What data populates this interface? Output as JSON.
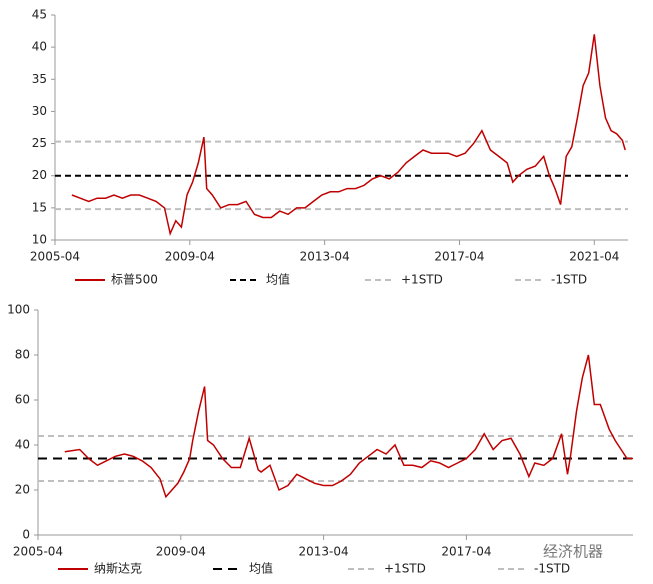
{
  "chart_data": [
    {
      "type": "line",
      "x": [
        "2005-10",
        "2006-01",
        "2006-04",
        "2006-07",
        "2006-10",
        "2007-01",
        "2007-04",
        "2007-07",
        "2007-10",
        "2008-01",
        "2008-04",
        "2008-07",
        "2008-09",
        "2008-11",
        "2009-01",
        "2009-03",
        "2009-05",
        "2009-07",
        "2009-09",
        "2009-10",
        "2009-12",
        "2010-03",
        "2010-06",
        "2010-09",
        "2010-12",
        "2011-03",
        "2011-06",
        "2011-09",
        "2011-12",
        "2012-03",
        "2012-06",
        "2012-09",
        "2012-12",
        "2013-03",
        "2013-06",
        "2013-09",
        "2013-12",
        "2014-03",
        "2014-06",
        "2014-09",
        "2014-12",
        "2015-03",
        "2015-06",
        "2015-09",
        "2015-12",
        "2016-03",
        "2016-06",
        "2016-09",
        "2016-12",
        "2017-03",
        "2017-06",
        "2017-09",
        "2017-12",
        "2018-03",
        "2018-06",
        "2018-09",
        "2018-11",
        "2019-01",
        "2019-04",
        "2019-07",
        "2019-10",
        "2019-12",
        "2020-01",
        "2020-02",
        "2020-04",
        "2020-06",
        "2020-08",
        "2020-10",
        "2020-12",
        "2021-02",
        "2021-04",
        "2021-06",
        "2021-08",
        "2021-10",
        "2021-12",
        "2022-02",
        "2022-03"
      ],
      "series": [
        {
          "name": "标普500",
          "color": "#c00000",
          "values": [
            17,
            16.5,
            16,
            16.5,
            16.5,
            17,
            16.5,
            17,
            17,
            16.5,
            16,
            15,
            11,
            13,
            12,
            17,
            19,
            22,
            26,
            18,
            17,
            15,
            15.5,
            15.5,
            16,
            14,
            13.5,
            13.5,
            14.5,
            14,
            15,
            15,
            16,
            17,
            17.5,
            17.5,
            18,
            18,
            18.5,
            19.5,
            20,
            19.5,
            20.5,
            22,
            23,
            24,
            23.5,
            23.5,
            23.5,
            23,
            23.5,
            25,
            27,
            24,
            23,
            22,
            19,
            20,
            21,
            21.5,
            23,
            20,
            19,
            18,
            15.5,
            23,
            24.5,
            29,
            34,
            36,
            42,
            34,
            29,
            27,
            26.5,
            25.5,
            24
          ]
        }
      ],
      "reference_lines": [
        {
          "name": "均值",
          "color": "#000000",
          "value": 20,
          "dash": "6,4"
        },
        {
          "name": "+1STD",
          "color": "#bfbfbf",
          "value": 25.3,
          "dash": "6,4"
        },
        {
          "name": "-1STD",
          "color": "#bfbfbf",
          "value": 14.8,
          "dash": "6,4"
        }
      ],
      "xlim": [
        "2005-04",
        "2022-04"
      ],
      "xticks": [
        "2005-04",
        "2009-04",
        "2013-04",
        "2017-04",
        "2021-04"
      ],
      "ylim": [
        10,
        45
      ],
      "yticks": [
        10,
        15,
        20,
        25,
        30,
        35,
        40,
        45
      ]
    },
    {
      "type": "line",
      "x": [
        "2006-01",
        "2006-06",
        "2006-09",
        "2006-12",
        "2007-03",
        "2007-06",
        "2007-09",
        "2007-12",
        "2008-03",
        "2008-06",
        "2008-09",
        "2008-11",
        "2009-01",
        "2009-03",
        "2009-05",
        "2009-07",
        "2009-08",
        "2009-10",
        "2009-12",
        "2010-01",
        "2010-03",
        "2010-06",
        "2010-09",
        "2010-12",
        "2011-03",
        "2011-06",
        "2011-07",
        "2011-10",
        "2012-01",
        "2012-04",
        "2012-07",
        "2012-10",
        "2013-01",
        "2013-04",
        "2013-07",
        "2013-10",
        "2014-01",
        "2014-04",
        "2014-07",
        "2014-10",
        "2015-01",
        "2015-04",
        "2015-07",
        "2015-10",
        "2016-01",
        "2016-04",
        "2016-07",
        "2016-10",
        "2017-01",
        "2017-04",
        "2017-07",
        "2017-10",
        "2018-01",
        "2018-04",
        "2018-07",
        "2018-10",
        "2019-01",
        "2019-03",
        "2019-06",
        "2019-09",
        "2019-12",
        "2020-02",
        "2020-03",
        "2020-05",
        "2020-07",
        "2020-09",
        "2020-11",
        "2021-01",
        "2021-04",
        "2021-06",
        "2021-08",
        "2021-10",
        "2021-12"
      ],
      "series": [
        {
          "name": "纳斯达克",
          "color": "#c00000",
          "values": [
            37,
            38,
            34,
            31,
            33,
            35,
            36,
            35,
            33,
            30,
            25,
            17,
            20,
            23,
            28,
            34,
            42,
            55,
            66,
            42,
            40,
            34,
            30,
            30,
            43,
            29,
            28,
            31,
            20,
            22,
            27,
            25,
            23,
            22,
            22,
            24,
            27,
            32,
            35,
            38,
            36,
            40,
            31,
            31,
            30,
            33,
            32,
            30,
            32,
            34,
            38,
            45,
            38,
            42,
            43,
            36,
            26,
            32,
            31,
            34,
            45,
            27,
            35,
            55,
            70,
            80,
            58,
            58,
            47,
            42,
            38,
            34,
            34
          ]
        }
      ],
      "reference_lines": [
        {
          "name": "均值",
          "color": "#000000",
          "value": 34,
          "dash": "9,6"
        },
        {
          "name": "+1STD",
          "color": "#bfbfbf",
          "value": 44,
          "dash": "6,4"
        },
        {
          "name": "-1STD",
          "color": "#bfbfbf",
          "value": 24,
          "dash": "6,4"
        }
      ],
      "xlim": [
        "2005-04",
        "2021-12"
      ],
      "xticks": [
        "2005-04",
        "2009-04",
        "2013-04",
        "2017-04"
      ],
      "ylim": [
        0,
        100
      ],
      "yticks": [
        0,
        20,
        40,
        60,
        80,
        100
      ]
    }
  ],
  "watermark": "经济机器"
}
